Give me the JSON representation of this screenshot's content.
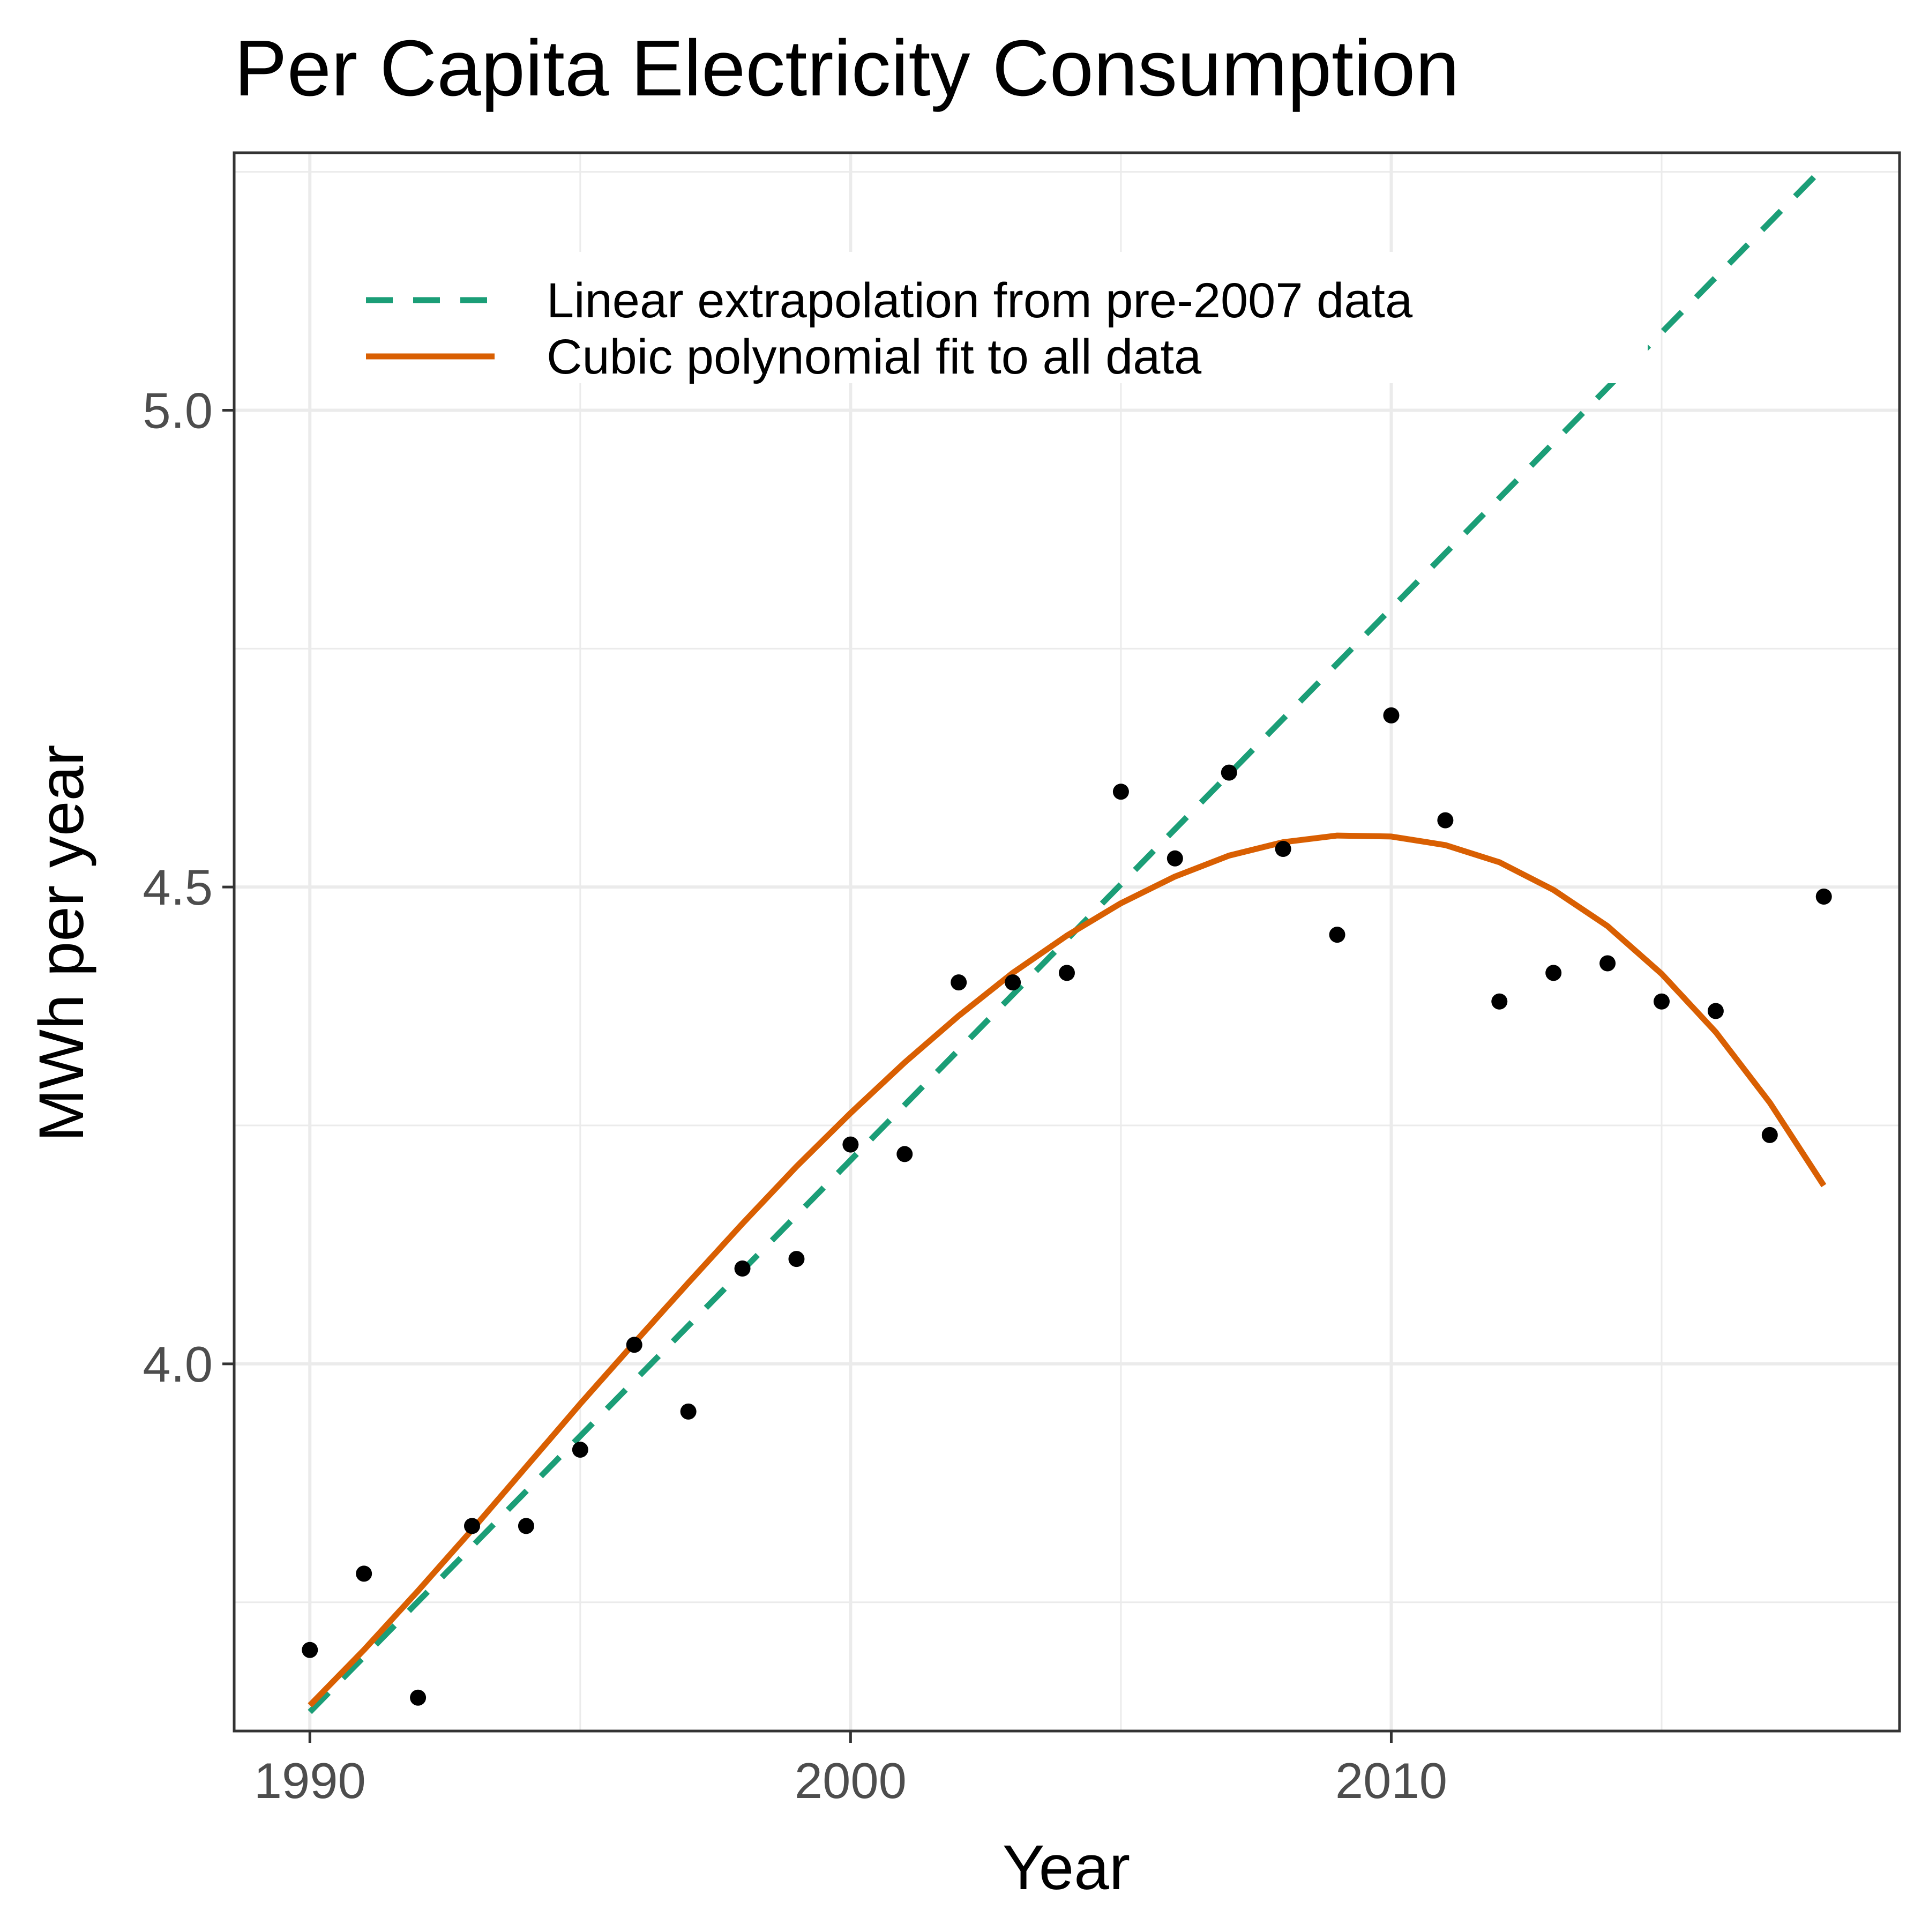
{
  "chart_data": {
    "type": "scatter",
    "title": "Per Capita Electricity Consumption",
    "xlabel": "Year",
    "ylabel": "MWh per year",
    "xlim": [
      1988.6,
      2019.4
    ],
    "ylim": [
      3.615,
      5.27
    ],
    "x_ticks": [
      1990,
      2000,
      2010
    ],
    "x_tick_labels": [
      "1990",
      "2000",
      "2010"
    ],
    "x_minor_ticks": [
      1995,
      2005,
      2015
    ],
    "y_ticks": [
      4.0,
      4.5,
      5.0
    ],
    "y_tick_labels": [
      "4.0",
      "4.5",
      "5.0"
    ],
    "y_minor_ticks": [
      3.75,
      4.25,
      4.75,
      5.25
    ],
    "grid": true,
    "legend_position": "top-left (inside plot)",
    "points": {
      "x": [
        1990,
        1991,
        1992,
        1993,
        1994,
        1995,
        1996,
        1997,
        1998,
        1999,
        2000,
        2001,
        2002,
        2003,
        2004,
        2005,
        2006,
        2007,
        2008,
        2009,
        2010,
        2011,
        2012,
        2013,
        2014,
        2015,
        2016,
        2017,
        2018
      ],
      "y": [
        3.7,
        3.78,
        3.65,
        3.83,
        3.83,
        3.91,
        4.02,
        3.95,
        4.1,
        4.11,
        4.23,
        4.22,
        4.4,
        4.4,
        4.41,
        4.6,
        4.53,
        4.62,
        4.54,
        4.45,
        4.68,
        4.57,
        4.38,
        4.41,
        4.42,
        4.38,
        4.37,
        4.24,
        4.49
      ],
      "color": "#000000"
    },
    "series": [
      {
        "name": "Linear extrapolation from pre-2007 data",
        "style": "dashed",
        "color": "#1b9e77",
        "x": [
          1990,
          2018
        ],
        "y": [
          3.635,
          5.255
        ]
      },
      {
        "name": "Cubic polynomial fit to all data",
        "style": "solid",
        "color": "#d95f02",
        "x": [
          1990,
          1991,
          1992,
          1993,
          1994,
          1995,
          1996,
          1997,
          1998,
          1999,
          2000,
          2001,
          2002,
          2003,
          2004,
          2005,
          2006,
          2007,
          2008,
          2009,
          2010,
          2011,
          2012,
          2013,
          2014,
          2015,
          2016,
          2017,
          2018
        ],
        "y": [
          3.642,
          3.7,
          3.762,
          3.826,
          3.892,
          3.958,
          4.022,
          4.085,
          4.147,
          4.207,
          4.263,
          4.316,
          4.365,
          4.41,
          4.449,
          4.483,
          4.511,
          4.533,
          4.547,
          4.554,
          4.553,
          4.544,
          4.526,
          4.497,
          4.459,
          4.409,
          4.348,
          4.274,
          4.187
        ]
      }
    ]
  }
}
